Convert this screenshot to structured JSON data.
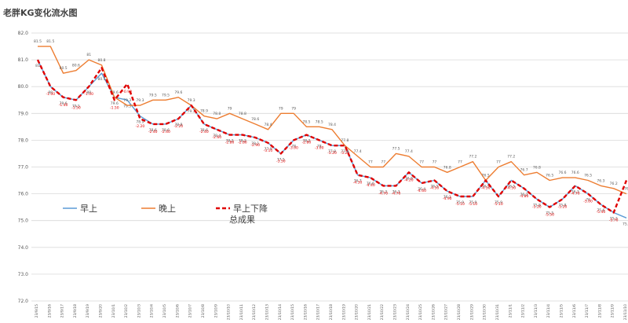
{
  "title": "老胖KG变化流水图",
  "colors": {
    "morning": "#5b9bd5",
    "evening": "#ed7d31",
    "decline": "#e00000"
  },
  "chart_data": {
    "type": "line",
    "title": "老胖KG变化流水图",
    "ylim": [
      72.0,
      82.0
    ],
    "y_ticks": [
      "72.0",
      "73.0",
      "74.0",
      "75.0",
      "76.0",
      "77.0",
      "78.0",
      "79.0",
      "80.0",
      "81.0",
      "82.0"
    ],
    "grid": "horizontal",
    "legend": {
      "position": "middle-left",
      "entries": [
        "早上",
        "晚上",
        "早上下降总成果"
      ]
    },
    "categories": [
      "23/9/15",
      "23/9/16",
      "23/9/17",
      "23/9/18",
      "23/9/19",
      "23/9/20",
      "23/10/1",
      "23/10/2",
      "23/10/3",
      "23/10/4",
      "23/10/5",
      "23/10/6",
      "23/10/7",
      "23/10/8",
      "23/10/9",
      "23/10/10",
      "23/10/11",
      "23/10/12",
      "23/10/13",
      "23/10/14",
      "23/10/15",
      "23/10/16",
      "23/10/17",
      "23/10/18",
      "23/10/19",
      "23/10/20",
      "23/10/21",
      "23/10/22",
      "23/10/23",
      "23/10/24",
      "23/10/25",
      "23/10/26",
      "23/10/27",
      "23/10/28",
      "23/10/29",
      "23/10/30",
      "23/10/31",
      "23/11/1",
      "23/11/2",
      "23/11/3",
      "23/11/4",
      "23/11/5",
      "23/11/6",
      "23/11/7",
      "23/11/8",
      "23/11/9",
      "23/11/10"
    ],
    "series": [
      {
        "name": "早上",
        "role": "morning",
        "values": [
          81,
          80,
          79.6,
          79.5,
          80,
          80.5,
          79.6,
          79.5,
          78.9,
          78.6,
          78.6,
          78.8,
          79.3,
          78.6,
          78.4,
          78.2,
          78.2,
          78.1,
          77.9,
          77.5,
          78,
          78.2,
          78,
          77.8,
          77.8,
          76.7,
          76.6,
          76.3,
          76.3,
          76.8,
          76.4,
          76.5,
          76.1,
          75.9,
          75.9,
          76.5,
          75.9,
          76.5,
          76.2,
          75.8,
          75.5,
          75.8,
          76.3,
          76,
          75.6,
          75.3,
          75.1
        ],
        "labels": [
          "81",
          "80",
          "79.6",
          "79.5",
          "80",
          "80.5",
          "79.6",
          "79.5",
          "78.9",
          "78.6",
          "78.6",
          "78.8",
          "79.3",
          "78.6",
          "78.4",
          "78.2",
          "78.2",
          "78.1",
          "77.9",
          "77.5",
          "78",
          "78.2",
          "78",
          "77.8",
          "77.8",
          "76.7",
          "76.6",
          "76.3",
          "76.3",
          "76.8",
          "76.4",
          "76.5",
          "76.1",
          "75.9",
          "75.9",
          "76.5",
          "75.9",
          "76.5",
          "76.2",
          "75.8",
          "75.5",
          "75.8",
          "76.3",
          "76",
          "75.6",
          "75.3",
          "75.1"
        ]
      },
      {
        "name": "晚上",
        "role": "evening",
        "values": [
          81.5,
          81.5,
          80.5,
          80.6,
          81,
          80.8,
          79.6,
          79.3,
          79.3,
          79.5,
          79.5,
          79.6,
          79.3,
          78.9,
          78.8,
          79,
          78.8,
          78.6,
          78.4,
          79,
          79,
          78.5,
          78.5,
          78.4,
          77.8,
          77.4,
          77,
          77,
          77.5,
          77.4,
          77,
          77,
          76.8,
          77,
          77.2,
          76.5,
          77,
          77.2,
          76.7,
          76.8,
          76.5,
          76.6,
          76.6,
          76.5,
          76.3,
          76.2,
          76
        ],
        "labels": [
          "81.5",
          "81.5",
          "80.5",
          "80.6",
          "81",
          "80.8",
          "79.6",
          "79.3",
          "79.3",
          "79.5",
          "79.5",
          "79.6",
          "79.3",
          "78.9",
          "78.8",
          "79",
          "78.8",
          "78.6",
          "78.4",
          "79",
          "79",
          "78.5",
          "78.5",
          "78.4",
          "77.8",
          "77.4",
          "77",
          "77",
          "77.5",
          "77.4",
          "77",
          "77",
          "76.8",
          "77",
          "77.2",
          "76.5",
          "77",
          "77.2",
          "76.7",
          "76.8",
          "76.5",
          "76.6",
          "76.6",
          "76.5",
          "76.3",
          "76.2",
          "76"
        ]
      },
      {
        "name": "早上下降总成果",
        "role": "decline",
        "values": [
          0,
          -1.0,
          -1.4,
          -1.5,
          -1.0,
          -0.3,
          -1.5,
          -0.9,
          -2.2,
          -2.4,
          -2.4,
          -2.2,
          -1.7,
          -2.4,
          -2.6,
          -2.8,
          -2.8,
          -2.9,
          -3.1,
          -3.5,
          -3.0,
          -2.8,
          -3.0,
          -3.2,
          -3.2,
          -4.3,
          -4.4,
          -4.7,
          -4.7,
          -4.2,
          -4.6,
          -4.5,
          -4.9,
          -5.1,
          -5.1,
          -4.5,
          -5.1,
          -4.5,
          -4.8,
          -5.2,
          -5.5,
          -5.2,
          -4.7,
          -5.0,
          -5.4,
          -5.7,
          -4.5
        ],
        "labels": [
          "",
          "-1.00",
          "-1.40",
          "-1.50",
          "-1.00",
          "",
          "-1.50",
          "-0.90",
          "-2.20",
          "-2.40",
          "-2.40",
          "-2.20",
          "",
          "-2.40",
          "-2.60",
          "-2.80",
          "-2.80",
          "-2.90",
          "-3.10",
          "-3.50",
          "-3.00",
          "-2.80",
          "-3.00",
          "-3.20",
          "-3.20",
          "-4.30",
          "-4.40",
          "-4.70",
          "-4.70",
          "-4.20",
          "-4.60",
          "-4.50",
          "-4.90",
          "-5.10",
          "-5.10",
          "-4.50",
          "-5.10",
          "-4.50",
          "-4.80",
          "-5.20",
          "-5.50",
          "-5.20",
          "-4.70",
          "-5.00",
          "-5.40",
          "-5.70",
          ""
        ]
      }
    ]
  }
}
